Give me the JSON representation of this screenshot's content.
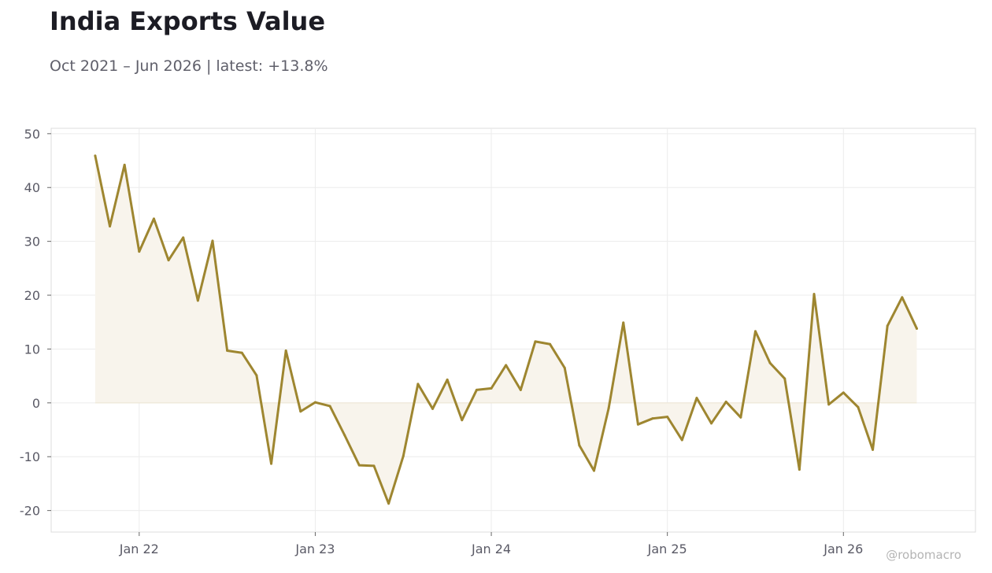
{
  "header": {
    "title": "India Exports Value",
    "subtitle": "Oct 2021 – Jun 2026 | latest: +13.8%"
  },
  "watermark": "@robomacro",
  "colors": {
    "line": "#9e8630",
    "fill": "#f8f4ec",
    "grid": "#ececec",
    "frame": "#dcdcdc"
  },
  "chart_data": {
    "type": "area",
    "x_start": "2021-10",
    "x_frequency": "monthly",
    "xlim": [
      "2021-07",
      "2026-10"
    ],
    "ylim": [
      -24,
      51
    ],
    "y_ticks": [
      -20,
      -10,
      0,
      10,
      20,
      30,
      40,
      50
    ],
    "y_tick_labels": [
      "-20",
      "-10",
      "0",
      "10",
      "20",
      "30",
      "40",
      "50"
    ],
    "x_ticks": [
      {
        "date": "2022-01",
        "label": "Jan 22"
      },
      {
        "date": "2023-01",
        "label": "Jan 23"
      },
      {
        "date": "2024-01",
        "label": "Jan 24"
      },
      {
        "date": "2025-01",
        "label": "Jan 25"
      },
      {
        "date": "2026-01",
        "label": "Jan 26"
      }
    ],
    "grid": true,
    "series": [
      {
        "values": [
          45.9,
          32.8,
          44.2,
          28.1,
          34.2,
          26.5,
          30.7,
          19.0,
          30.1,
          9.7,
          9.3,
          5.1,
          -11.3,
          9.7,
          -1.6,
          0.1,
          -0.6,
          -6.0,
          -11.6,
          -11.7,
          -18.7,
          -9.9,
          3.5,
          -1.1,
          4.3,
          -3.2,
          2.4,
          2.7,
          7.0,
          2.4,
          11.4,
          10.9,
          6.5,
          -7.9,
          -12.6,
          -1.0,
          14.9,
          -4.0,
          -2.9,
          -2.6,
          -6.9,
          0.9,
          -3.8,
          0.2,
          -2.7,
          13.3,
          7.4,
          4.5,
          -12.4,
          20.2,
          -0.3,
          1.9,
          -0.8,
          -8.7,
          14.3,
          19.6,
          13.8
        ]
      }
    ]
  }
}
